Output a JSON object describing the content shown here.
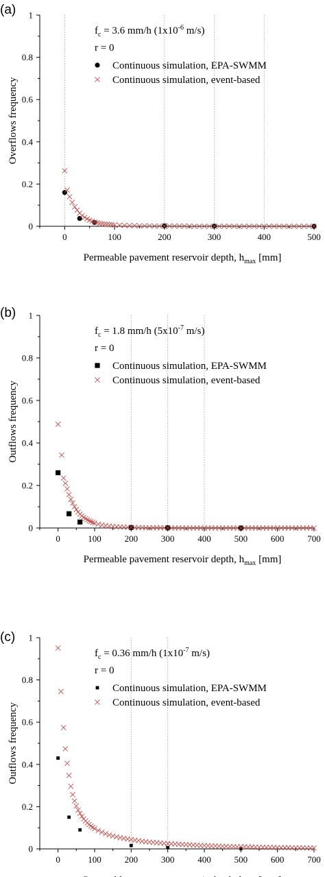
{
  "colors": {
    "swmm": "#000000",
    "event": "#c0504d",
    "grid": "#9a9a9a"
  },
  "chart_data": [
    {
      "type": "scatter",
      "panel_label": "(a)",
      "annotation": {
        "fc_prefix": "f",
        "fc_sub": "c",
        "fc_value": " =  3.6 mm/h (1x10",
        "fc_exp": "-6",
        "fc_tail": " m/s)",
        "r_text": "r = 0"
      },
      "xlabel": {
        "main": "Permeable pavement reservoir depth, h",
        "sub": "max",
        "unit": " [mm]"
      },
      "ylabel": "Overflows frequency",
      "xlim": [
        -50,
        500
      ],
      "ylim": [
        0,
        1
      ],
      "xticks": [
        0,
        100,
        200,
        300,
        400,
        500
      ],
      "yticks": [
        0,
        0.2,
        0.4,
        0.6,
        0.8,
        1
      ],
      "xtick_labels": [
        "0",
        "100",
        "200",
        "300",
        "400",
        "500"
      ],
      "ytick_labels": [
        "0",
        "0.2",
        "0.4",
        "0.6",
        "0.8",
        "1"
      ],
      "grid_x": [
        0,
        200,
        300,
        400
      ],
      "legend_position": "top-right",
      "series": [
        {
          "name": "Continuous simulation, EPA-SWMM",
          "marker": "circle",
          "x": [
            0,
            30,
            60,
            200,
            300,
            500
          ],
          "y": [
            0.16,
            0.037,
            0.018,
            0.002,
            0.001,
            0.0
          ]
        },
        {
          "name": "Continuous simulation, event-based",
          "marker": "x",
          "points": [
            [
              0,
              0.263
            ],
            [
              5,
              0.172
            ],
            [
              10,
              0.14
            ],
            [
              15,
              0.113
            ],
            [
              20,
              0.092
            ],
            [
              25,
              0.076
            ],
            [
              30,
              0.062
            ],
            [
              35,
              0.051
            ],
            [
              40,
              0.042
            ],
            [
              45,
              0.035
            ],
            [
              50,
              0.029
            ],
            [
              55,
              0.024
            ],
            [
              60,
              0.02
            ],
            [
              65,
              0.017
            ],
            [
              70,
              0.014
            ],
            [
              75,
              0.012
            ],
            [
              80,
              0.01
            ],
            [
              85,
              0.009
            ],
            [
              90,
              0.008
            ],
            [
              95,
              0.007
            ],
            [
              100,
              0.006
            ],
            [
              110,
              0.005
            ],
            [
              120,
              0.004
            ],
            [
              130,
              0.003
            ],
            [
              140,
              0.003
            ],
            [
              150,
              0.002
            ],
            [
              160,
              0.002
            ],
            [
              170,
              0.002
            ],
            [
              180,
              0.001
            ],
            [
              190,
              0.001
            ],
            [
              200,
              0.001
            ],
            [
              210,
              0.001
            ],
            [
              220,
              0.001
            ],
            [
              230,
              0.001
            ],
            [
              240,
              0.001
            ],
            [
              250,
              0.001
            ],
            [
              260,
              0.0
            ],
            [
              270,
              0.0
            ],
            [
              280,
              0.0
            ],
            [
              290,
              0.0
            ],
            [
              300,
              0.0
            ],
            [
              310,
              0.0
            ],
            [
              320,
              0.0
            ],
            [
              330,
              0.0
            ],
            [
              340,
              0.0
            ],
            [
              350,
              0.0
            ],
            [
              360,
              0.0
            ],
            [
              370,
              0.0
            ],
            [
              380,
              0.0
            ],
            [
              390,
              0.0
            ],
            [
              400,
              0.0
            ],
            [
              410,
              0.0
            ],
            [
              420,
              0.0
            ],
            [
              430,
              0.0
            ],
            [
              440,
              0.0
            ],
            [
              450,
              0.0
            ],
            [
              460,
              0.0
            ],
            [
              470,
              0.0
            ],
            [
              480,
              0.0
            ],
            [
              490,
              0.0
            ],
            [
              500,
              0.0
            ]
          ]
        }
      ]
    },
    {
      "type": "scatter",
      "panel_label": "(b)",
      "annotation": {
        "fc_prefix": "f",
        "fc_sub": "c",
        "fc_value": " =  1.8 mm/h (5x10",
        "fc_exp": "-7",
        "fc_tail": " m/s)",
        "r_text": "r = 0"
      },
      "xlabel": {
        "main": "Permeable pavement reservoir depth, h",
        "sub": "max",
        "unit": " [mm]"
      },
      "ylabel": "Outflows frequency",
      "xlim": [
        -50,
        700
      ],
      "ylim": [
        0,
        1
      ],
      "xticks": [
        0,
        100,
        200,
        300,
        400,
        500,
        600,
        700
      ],
      "yticks": [
        0,
        0.2,
        0.4,
        0.6,
        0.8,
        1
      ],
      "xtick_labels": [
        "0",
        "100",
        "200",
        "300",
        "400",
        "500",
        "600",
        "700"
      ],
      "ytick_labels": [
        "0",
        "0.2",
        "0.4",
        "0.6",
        "0.8",
        "1"
      ],
      "grid_x": [
        200,
        300,
        400
      ],
      "legend_position": "top-right",
      "series": [
        {
          "name": "Continuous simulation, EPA-SWMM",
          "marker": "square",
          "x": [
            0,
            30,
            60,
            200,
            300,
            500
          ],
          "y": [
            0.26,
            0.067,
            0.028,
            0.002,
            0.001,
            0.0
          ]
        },
        {
          "name": "Continuous simulation, event-based",
          "marker": "x",
          "points": [
            [
              0,
              0.488
            ],
            [
              10,
              0.343
            ],
            [
              15,
              0.235
            ],
            [
              20,
              0.21
            ],
            [
              25,
              0.184
            ],
            [
              30,
              0.157
            ],
            [
              35,
              0.135
            ],
            [
              40,
              0.117
            ],
            [
              45,
              0.1
            ],
            [
              50,
              0.087
            ],
            [
              55,
              0.075
            ],
            [
              60,
              0.065
            ],
            [
              65,
              0.057
            ],
            [
              70,
              0.05
            ],
            [
              75,
              0.044
            ],
            [
              80,
              0.039
            ],
            [
              85,
              0.034
            ],
            [
              90,
              0.03
            ],
            [
              95,
              0.026
            ],
            [
              100,
              0.023
            ],
            [
              110,
              0.018
            ],
            [
              120,
              0.014
            ],
            [
              130,
              0.011
            ],
            [
              140,
              0.009
            ],
            [
              150,
              0.007
            ],
            [
              160,
              0.006
            ],
            [
              170,
              0.005
            ],
            [
              180,
              0.004
            ],
            [
              190,
              0.003
            ],
            [
              200,
              0.003
            ],
            [
              210,
              0.002
            ],
            [
              220,
              0.002
            ],
            [
              230,
              0.002
            ],
            [
              240,
              0.001
            ],
            [
              250,
              0.001
            ],
            [
              260,
              0.001
            ],
            [
              270,
              0.001
            ],
            [
              280,
              0.001
            ],
            [
              290,
              0.001
            ],
            [
              300,
              0.001
            ],
            [
              310,
              0.0
            ],
            [
              320,
              0.0
            ],
            [
              330,
              0.0
            ],
            [
              340,
              0.0
            ],
            [
              350,
              0.0
            ],
            [
              360,
              0.0
            ],
            [
              370,
              0.0
            ],
            [
              380,
              0.0
            ],
            [
              390,
              0.0
            ],
            [
              400,
              0.0
            ],
            [
              410,
              0.0
            ],
            [
              420,
              0.0
            ],
            [
              430,
              0.0
            ],
            [
              440,
              0.0
            ],
            [
              450,
              0.0
            ],
            [
              460,
              0.0
            ],
            [
              470,
              0.0
            ],
            [
              480,
              0.0
            ],
            [
              490,
              0.0
            ],
            [
              500,
              0.0
            ],
            [
              510,
              0.0
            ],
            [
              520,
              0.0
            ],
            [
              530,
              0.0
            ],
            [
              540,
              0.0
            ],
            [
              550,
              0.0
            ],
            [
              560,
              0.0
            ],
            [
              570,
              0.0
            ],
            [
              580,
              0.0
            ],
            [
              590,
              0.0
            ],
            [
              600,
              0.0
            ],
            [
              610,
              0.0
            ],
            [
              620,
              0.0
            ],
            [
              630,
              0.0
            ],
            [
              640,
              0.0
            ],
            [
              650,
              0.0
            ],
            [
              660,
              0.0
            ],
            [
              670,
              0.0
            ],
            [
              680,
              0.0
            ],
            [
              690,
              0.0
            ],
            [
              700,
              0.0
            ]
          ]
        }
      ]
    },
    {
      "type": "scatter",
      "panel_label": "(c)",
      "annotation": {
        "fc_prefix": "f",
        "fc_sub": "c",
        "fc_value": " =  0.36 mm/h (1x10",
        "fc_exp": "-7",
        "fc_tail": " m/s)",
        "r_text": "r = 0"
      },
      "xlabel": {
        "main": "Permeable pavement reservoir depth, h",
        "sub": "max",
        "unit": " [mm]"
      },
      "ylabel": "Outflows frequency",
      "xlim": [
        -50,
        700
      ],
      "ylim": [
        0,
        1
      ],
      "xticks": [
        0,
        100,
        200,
        300,
        400,
        500,
        600,
        700
      ],
      "yticks": [
        0,
        0.2,
        0.4,
        0.6,
        0.8,
        1
      ],
      "xtick_labels": [
        "0",
        "100",
        "200",
        "300",
        "400",
        "500",
        "600",
        "700"
      ],
      "ytick_labels": [
        "0",
        "0.2",
        "0.4",
        "0.6",
        "0.8",
        "1"
      ],
      "grid_x": [
        200,
        300
      ],
      "legend_position": "top-right",
      "series": [
        {
          "name": "Continuous simulation, EPA-SWMM",
          "marker": "square-small",
          "x": [
            0,
            30,
            60,
            200,
            300,
            500
          ],
          "y": [
            0.43,
            0.15,
            0.09,
            0.016,
            0.006,
            0.001
          ]
        },
        {
          "name": "Continuous simulation, event-based",
          "marker": "x",
          "points": [
            [
              0,
              0.951
            ],
            [
              8,
              0.745
            ],
            [
              15,
              0.574
            ],
            [
              20,
              0.474
            ],
            [
              25,
              0.405
            ],
            [
              30,
              0.348
            ],
            [
              35,
              0.296
            ],
            [
              40,
              0.257
            ],
            [
              45,
              0.227
            ],
            [
              50,
              0.203
            ],
            [
              55,
              0.184
            ],
            [
              60,
              0.168
            ],
            [
              65,
              0.154
            ],
            [
              70,
              0.142
            ],
            [
              75,
              0.132
            ],
            [
              80,
              0.123
            ],
            [
              85,
              0.115
            ],
            [
              90,
              0.108
            ],
            [
              95,
              0.102
            ],
            [
              100,
              0.096
            ],
            [
              110,
              0.087
            ],
            [
              120,
              0.079
            ],
            [
              130,
              0.072
            ],
            [
              140,
              0.066
            ],
            [
              150,
              0.061
            ],
            [
              160,
              0.057
            ],
            [
              170,
              0.053
            ],
            [
              180,
              0.05
            ],
            [
              190,
              0.047
            ],
            [
              200,
              0.044
            ],
            [
              210,
              0.041
            ],
            [
              220,
              0.039
            ],
            [
              230,
              0.036
            ],
            [
              240,
              0.034
            ],
            [
              250,
              0.032
            ],
            [
              260,
              0.031
            ],
            [
              270,
              0.029
            ],
            [
              280,
              0.028
            ],
            [
              290,
              0.026
            ],
            [
              300,
              0.025
            ],
            [
              310,
              0.024
            ],
            [
              320,
              0.023
            ],
            [
              330,
              0.022
            ],
            [
              340,
              0.021
            ],
            [
              350,
              0.02
            ],
            [
              360,
              0.019
            ],
            [
              370,
              0.018
            ],
            [
              380,
              0.017
            ],
            [
              390,
              0.016
            ],
            [
              400,
              0.016
            ],
            [
              410,
              0.015
            ],
            [
              420,
              0.014
            ],
            [
              430,
              0.014
            ],
            [
              440,
              0.013
            ],
            [
              450,
              0.012
            ],
            [
              460,
              0.012
            ],
            [
              470,
              0.011
            ],
            [
              480,
              0.011
            ],
            [
              490,
              0.01
            ],
            [
              500,
              0.01
            ],
            [
              510,
              0.01
            ],
            [
              520,
              0.009
            ],
            [
              530,
              0.009
            ],
            [
              540,
              0.008
            ],
            [
              550,
              0.008
            ],
            [
              560,
              0.008
            ],
            [
              570,
              0.007
            ],
            [
              580,
              0.007
            ],
            [
              590,
              0.007
            ],
            [
              600,
              0.006
            ],
            [
              610,
              0.006
            ],
            [
              620,
              0.006
            ],
            [
              630,
              0.006
            ],
            [
              640,
              0.005
            ],
            [
              650,
              0.005
            ],
            [
              660,
              0.005
            ],
            [
              670,
              0.005
            ],
            [
              680,
              0.004
            ],
            [
              690,
              0.004
            ],
            [
              700,
              0.004
            ]
          ]
        }
      ]
    }
  ]
}
